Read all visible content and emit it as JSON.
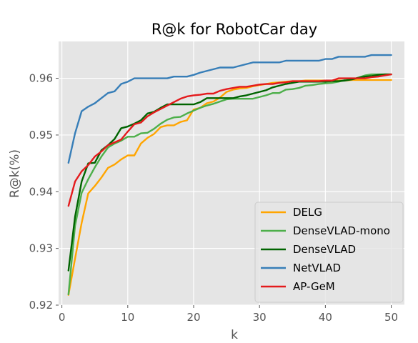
{
  "chart_data": {
    "type": "line",
    "title": "R@k for RobotCar day",
    "xlabel": "k",
    "ylabel": "R@k(%)",
    "xlim": [
      -0.5,
      52
    ],
    "ylim": [
      0.92,
      0.9665
    ],
    "xticks": [
      0,
      10,
      20,
      30,
      40,
      50
    ],
    "yticks": [
      0.92,
      0.93,
      0.94,
      0.95,
      0.96
    ],
    "ytick_labels": [
      "0.92",
      "0.93",
      "0.94",
      "0.95",
      "0.96"
    ],
    "grid": true,
    "legend_position": "lower-right",
    "x": [
      1,
      2,
      3,
      4,
      5,
      6,
      7,
      8,
      9,
      10,
      11,
      12,
      13,
      14,
      15,
      16,
      17,
      18,
      19,
      20,
      21,
      22,
      23,
      24,
      25,
      26,
      27,
      28,
      29,
      30,
      31,
      32,
      33,
      34,
      35,
      36,
      37,
      38,
      39,
      40,
      41,
      42,
      43,
      44,
      45,
      46,
      47,
      48,
      49,
      50
    ],
    "series": [
      {
        "name": "DELG",
        "color": "#ffa500",
        "values": [
          0.9218,
          0.9282,
          0.9345,
          0.9397,
          0.941,
          0.9425,
          0.9442,
          0.9448,
          0.9457,
          0.9464,
          0.9464,
          0.9485,
          0.9495,
          0.9502,
          0.9514,
          0.9517,
          0.9517,
          0.9523,
          0.9526,
          0.9545,
          0.9548,
          0.9556,
          0.9559,
          0.9566,
          0.9576,
          0.958,
          0.9582,
          0.9583,
          0.9586,
          0.9588,
          0.959,
          0.9592,
          0.9593,
          0.9594,
          0.9595,
          0.9595,
          0.9596,
          0.9596,
          0.9596,
          0.9596,
          0.9596,
          0.9596,
          0.9596,
          0.9597,
          0.9597,
          0.9597,
          0.9597,
          0.9597,
          0.9597,
          0.9597
        ]
      },
      {
        "name": "DenseVLAD-mono",
        "color": "#4daf4a",
        "values": [
          0.9219,
          0.934,
          0.9398,
          0.9422,
          0.9443,
          0.9462,
          0.9478,
          0.9485,
          0.949,
          0.9497,
          0.9497,
          0.9503,
          0.9504,
          0.9511,
          0.952,
          0.9527,
          0.9531,
          0.9532,
          0.9538,
          0.9543,
          0.9548,
          0.9552,
          0.9555,
          0.9559,
          0.9563,
          0.9564,
          0.9564,
          0.9564,
          0.9564,
          0.9567,
          0.957,
          0.9574,
          0.9574,
          0.958,
          0.9581,
          0.9583,
          0.9587,
          0.9588,
          0.959,
          0.9591,
          0.9592,
          0.9594,
          0.9597,
          0.9598,
          0.9601,
          0.9605,
          0.9607,
          0.9607,
          0.9607,
          0.9607
        ]
      },
      {
        "name": "DenseVLAD",
        "color": "#006400",
        "values": [
          0.9261,
          0.9356,
          0.9418,
          0.945,
          0.9451,
          0.9473,
          0.9482,
          0.9493,
          0.9512,
          0.9515,
          0.952,
          0.9526,
          0.9538,
          0.9541,
          0.9548,
          0.9554,
          0.9554,
          0.9554,
          0.9554,
          0.9554,
          0.9558,
          0.9565,
          0.9565,
          0.9565,
          0.9565,
          0.9565,
          0.9568,
          0.957,
          0.9573,
          0.9576,
          0.9579,
          0.9584,
          0.9587,
          0.959,
          0.9592,
          0.9594,
          0.9594,
          0.9594,
          0.9594,
          0.9594,
          0.9595,
          0.9595,
          0.9596,
          0.9598,
          0.9601,
          0.9603,
          0.9604,
          0.9606,
          0.9607,
          0.9607
        ]
      },
      {
        "name": "NetVLAD",
        "color": "#377eb8",
        "values": [
          0.9451,
          0.9503,
          0.9542,
          0.955,
          0.9556,
          0.9565,
          0.9574,
          0.9577,
          0.959,
          0.9594,
          0.96,
          0.96,
          0.96,
          0.96,
          0.96,
          0.96,
          0.9603,
          0.9603,
          0.9603,
          0.9606,
          0.961,
          0.9613,
          0.9616,
          0.9619,
          0.9619,
          0.9619,
          0.9622,
          0.9625,
          0.9628,
          0.9628,
          0.9628,
          0.9628,
          0.9628,
          0.9631,
          0.9631,
          0.9631,
          0.9631,
          0.9631,
          0.9631,
          0.9634,
          0.9634,
          0.9638,
          0.9638,
          0.9638,
          0.9638,
          0.9638,
          0.9641,
          0.9641,
          0.9641,
          0.9641
        ]
      },
      {
        "name": "AP-GeM",
        "color": "#e41a1c",
        "values": [
          0.9375,
          0.9418,
          0.9436,
          0.9447,
          0.9462,
          0.9471,
          0.9482,
          0.9487,
          0.9492,
          0.9506,
          0.9519,
          0.9522,
          0.9533,
          0.954,
          0.9546,
          0.9552,
          0.9558,
          0.9564,
          0.9568,
          0.957,
          0.9571,
          0.9573,
          0.9573,
          0.9578,
          0.9581,
          0.9583,
          0.9585,
          0.9585,
          0.9587,
          0.9589,
          0.959,
          0.959,
          0.9592,
          0.9593,
          0.9595,
          0.9595,
          0.9595,
          0.9595,
          0.9595,
          0.9596,
          0.9596,
          0.96,
          0.96,
          0.96,
          0.96,
          0.96,
          0.9602,
          0.9603,
          0.9605,
          0.9607
        ]
      }
    ]
  }
}
